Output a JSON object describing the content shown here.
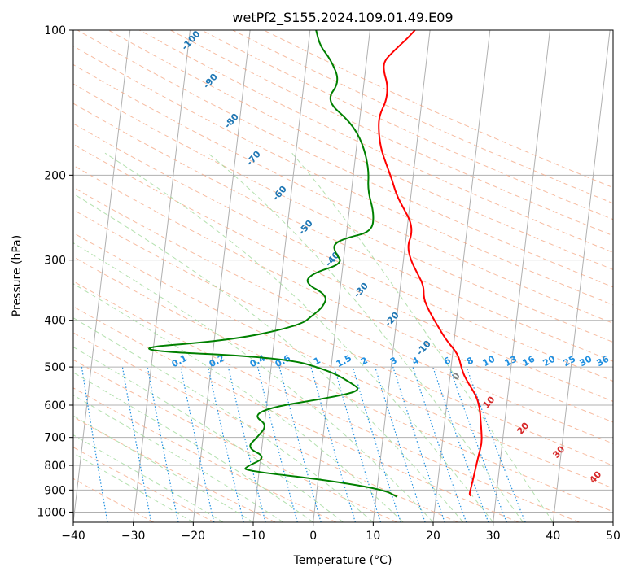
{
  "chart_data": {
    "type": "line",
    "title": "wetPf2_S155.2024.109.01.49.E09",
    "xlabel": "Temperature (°C)",
    "ylabel": "Pressure (hPa)",
    "xlim": [
      -40,
      50
    ],
    "ylim": [
      1050,
      100
    ],
    "y_scale": "log",
    "grid": true,
    "x_ticks": [
      -40,
      -30,
      -20,
      -10,
      0,
      10,
      20,
      30,
      40,
      50
    ],
    "y_ticks": [
      100,
      200,
      300,
      400,
      500,
      600,
      700,
      800,
      900,
      1000
    ],
    "colors": {
      "temperature": "#ff0000",
      "dewpoint": "#008000",
      "grid": "#b0b0b0",
      "dry_adiabat": "#f4a582",
      "moist_adiabat": "#a1d99b",
      "mixing_ratio": "#1f8fe0",
      "label_blue": "#1f77b4",
      "label_red": "#d62728",
      "label_gray": "#808080"
    },
    "series": [
      {
        "key": "temperature",
        "points": [
          [
            25.8,
            925
          ],
          [
            25.5,
            920
          ],
          [
            25.6,
            900
          ],
          [
            25.8,
            860
          ],
          [
            26.1,
            800
          ],
          [
            26.3,
            760
          ],
          [
            26.6,
            720
          ],
          [
            26.3,
            680
          ],
          [
            26.0,
            650
          ],
          [
            25.6,
            610
          ],
          [
            24.8,
            575
          ],
          [
            23.4,
            545
          ],
          [
            22.3,
            520
          ],
          [
            21.7,
            500
          ],
          [
            20.9,
            470
          ],
          [
            18.7,
            440
          ],
          [
            16.9,
            410
          ],
          [
            15.1,
            380
          ],
          [
            14.1,
            360
          ],
          [
            13.9,
            340
          ],
          [
            12.6,
            320
          ],
          [
            11.2,
            300
          ],
          [
            10.4,
            280
          ],
          [
            10.9,
            265
          ],
          [
            10.5,
            250
          ],
          [
            9.1,
            235
          ],
          [
            7.6,
            220
          ],
          [
            6.6,
            205
          ],
          [
            5.3,
            190
          ],
          [
            4.0,
            175
          ],
          [
            3.3,
            160
          ],
          [
            3.2,
            150
          ],
          [
            4.1,
            140
          ],
          [
            4.0,
            130
          ],
          [
            3.1,
            122
          ],
          [
            2.9,
            116
          ],
          [
            4.5,
            110
          ],
          [
            6.4,
            104
          ],
          [
            7.5,
            100
          ]
        ]
      },
      {
        "key": "dewpoint",
        "points": [
          [
            13.5,
            930
          ],
          [
            11.3,
            900
          ],
          [
            2.0,
            860
          ],
          [
            -12.5,
            820
          ],
          [
            -12.2,
            805
          ],
          [
            -9.0,
            770
          ],
          [
            -12.5,
            735
          ],
          [
            -11.0,
            700
          ],
          [
            -9.5,
            660
          ],
          [
            -12.0,
            630
          ],
          [
            -9.0,
            605
          ],
          [
            0.0,
            580
          ],
          [
            5.5,
            560
          ],
          [
            3.7,
            540
          ],
          [
            0.0,
            510
          ],
          [
            -8.0,
            478
          ],
          [
            -36.5,
            460
          ],
          [
            -17.0,
            440
          ],
          [
            -6.0,
            410
          ],
          [
            -4.0,
            390
          ],
          [
            -2.5,
            375
          ],
          [
            -2.0,
            355
          ],
          [
            -6.0,
            335
          ],
          [
            -5.0,
            320
          ],
          [
            0.0,
            305
          ],
          [
            -1.5,
            290
          ],
          [
            -2.0,
            278
          ],
          [
            0.0,
            270
          ],
          [
            4.2,
            262
          ],
          [
            4.2,
            240
          ],
          [
            2.7,
            215
          ],
          [
            2.5,
            195
          ],
          [
            1.0,
            172
          ],
          [
            -1.5,
            155
          ],
          [
            -6.0,
            140
          ],
          [
            -4.0,
            128
          ],
          [
            -6.0,
            115
          ],
          [
            -8.0,
            108
          ],
          [
            -9.0,
            100
          ]
        ]
      }
    ],
    "dry_adiabat_labels": [
      "-100",
      "-90",
      "-80",
      "-70",
      "-60",
      "-50",
      "-40",
      "-30",
      "-20",
      "-10"
    ],
    "mixing_ratio_labels": [
      "0.1",
      "0.2",
      "0.4",
      "0.6",
      "1",
      "1.5",
      "2",
      "3",
      "4",
      "6",
      "8",
      "10",
      "13",
      "16",
      "20",
      "25",
      "30",
      "36"
    ],
    "moist_adiabat_labels": [
      "0",
      "10",
      "20",
      "30",
      "40"
    ]
  }
}
